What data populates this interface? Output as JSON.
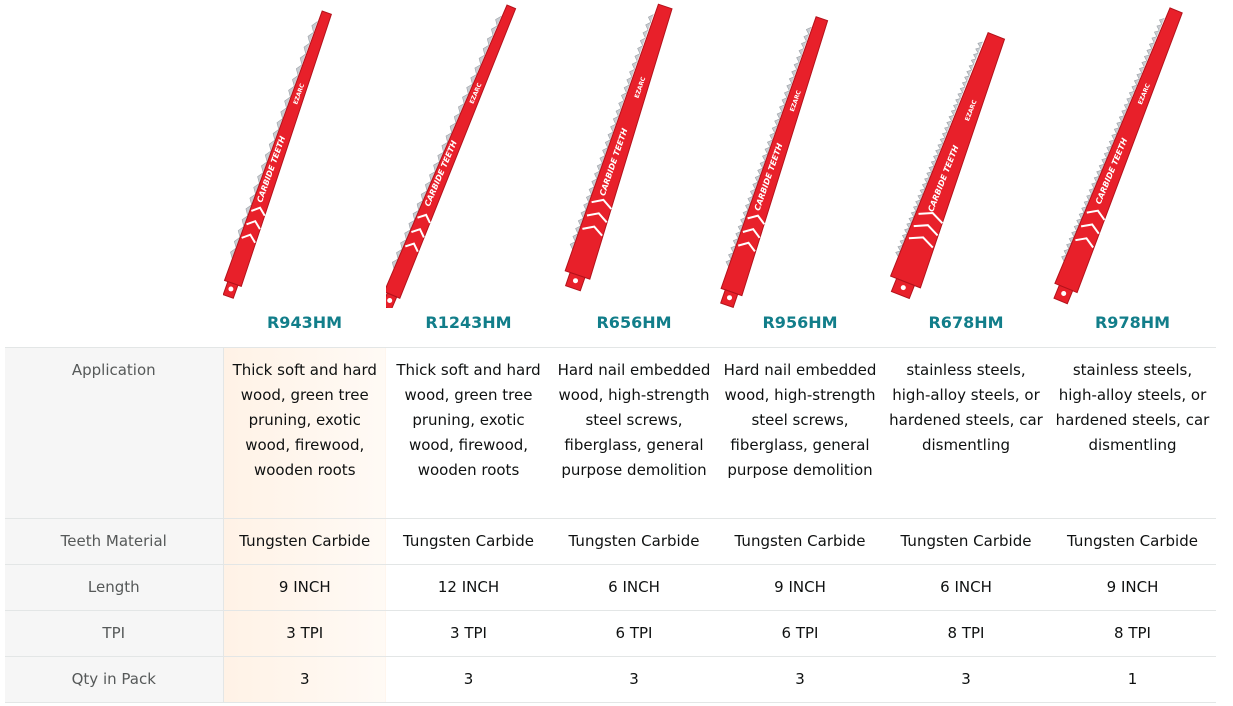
{
  "products": [
    {
      "model": "R943HM",
      "application": "Thick soft and hard wood, green tree pruning, exotic wood, firewood, wooden roots",
      "teeth_material": "Tungsten Carbide",
      "length": "9 INCH",
      "tpi": "3 TPI",
      "qty": "3",
      "blade_text": "CARBIDE TEETH",
      "brand": "EZARC"
    },
    {
      "model": "R1243HM",
      "application": "Thick soft and hard wood, green tree pruning, exotic wood, firewood, wooden roots",
      "teeth_material": "Tungsten Carbide",
      "length": "12 INCH",
      "tpi": "3 TPI",
      "qty": "3",
      "blade_text": "CARBIDE TEETH",
      "brand": "EZARC"
    },
    {
      "model": "R656HM",
      "application": "Hard nail embedded wood, high-strength steel screws, fiberglass, general purpose demolition",
      "teeth_material": "Tungsten Carbide",
      "length": "6 INCH",
      "tpi": "6 TPI",
      "qty": "3",
      "blade_text": "CARBIDE TEETH",
      "brand": "EZARC"
    },
    {
      "model": "R956HM",
      "application": "Hard nail embedded wood, high-strength steel screws, fiberglass, general purpose demolition",
      "teeth_material": "Tungsten Carbide",
      "length": "9 INCH",
      "tpi": "6 TPI",
      "qty": "3",
      "blade_text": "CARBIDE TEETH",
      "brand": "EZARC"
    },
    {
      "model": "R678HM",
      "application": "stainless steels, high-alloy steels, or hardened steels, car dismentling",
      "teeth_material": "Tungsten Carbide",
      "length": "6 INCH",
      "tpi": "8 TPI",
      "qty": "3",
      "blade_text": "CARBIDE TEETH",
      "brand": "EZARC"
    },
    {
      "model": "R978HM",
      "application": "stainless steels, high-alloy steels, or hardened steels, car dismentling",
      "teeth_material": "Tungsten Carbide",
      "length": "9 INCH",
      "tpi": "8 TPI",
      "qty": "1",
      "blade_text": "CARBIDE TEETH",
      "brand": "EZARC"
    }
  ],
  "row_labels": {
    "application": "Application",
    "teeth_material": "Teeth Material",
    "length": "Length",
    "tpi": "TPI",
    "qty": "Qty in Pack"
  },
  "colors": {
    "blade_red": "#e8202a",
    "blade_dark": "#b3121b",
    "teeth_silver": "#c9ccd1",
    "link_teal": "#127e8a",
    "highlight": "#fff2e6"
  }
}
